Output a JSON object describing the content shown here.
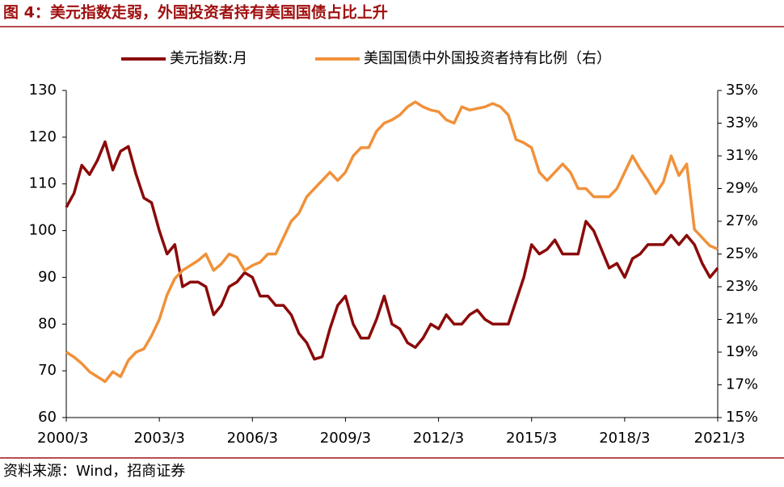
{
  "chart_data": {
    "type": "line",
    "title": "图 4：美元指数走弱，外国投资者持有美国国债占比上升",
    "source": "资料来源：Wind，招商证券",
    "categories": [
      "2000/3",
      null,
      null,
      null,
      null,
      null,
      null,
      null,
      null,
      null,
      null,
      null,
      "2003/3",
      null,
      null,
      null,
      null,
      null,
      null,
      null,
      null,
      null,
      null,
      null,
      "2006/3",
      null,
      null,
      null,
      null,
      null,
      null,
      null,
      null,
      null,
      null,
      null,
      "2009/3",
      null,
      null,
      null,
      null,
      null,
      null,
      null,
      null,
      null,
      null,
      null,
      "2012/3",
      null,
      null,
      null,
      null,
      null,
      null,
      null,
      null,
      null,
      null,
      null,
      "2015/3",
      null,
      null,
      null,
      null,
      null,
      null,
      null,
      null,
      null,
      null,
      null,
      "2018/3",
      null,
      null,
      null,
      null,
      null,
      null,
      null,
      null,
      null,
      null,
      null,
      "2021/3"
    ],
    "series": [
      {
        "name": "美元指数:月",
        "color": "#8b0a0a",
        "axis": "y",
        "values": [
          105,
          108,
          114,
          112,
          115,
          119,
          113,
          117,
          118,
          112,
          107,
          106,
          100,
          95,
          97,
          88,
          89,
          89,
          88,
          82,
          84,
          88,
          89,
          91,
          90,
          86,
          86,
          84,
          84,
          82,
          78,
          76,
          72.5,
          73,
          79,
          84,
          86,
          80,
          77,
          77,
          81,
          86,
          80,
          79,
          76,
          75,
          77,
          80,
          79,
          82,
          80,
          80,
          82,
          83,
          81,
          80,
          80,
          80,
          85,
          90,
          97,
          95,
          96,
          98,
          95,
          95,
          95,
          102,
          100,
          96,
          92,
          93,
          90,
          94,
          95,
          97,
          97,
          97,
          99,
          97,
          99,
          97,
          93,
          90,
          92
        ]
      },
      {
        "name": "美国国债中外国投资者持有比例（右）",
        "color": "#f0913a",
        "axis": "y2",
        "values": [
          19,
          18.7,
          18.3,
          17.8,
          17.5,
          17.2,
          17.8,
          17.5,
          18.5,
          19,
          19.2,
          20,
          21,
          22.5,
          23.5,
          24,
          24.3,
          24.6,
          25,
          24,
          24.4,
          25,
          24.8,
          24,
          24.3,
          24.5,
          25,
          25,
          26,
          27,
          27.5,
          28.5,
          29,
          29.5,
          30,
          29.5,
          30,
          31,
          31.5,
          31.5,
          32.5,
          33,
          33.2,
          33.5,
          34,
          34.3,
          34,
          33.8,
          33.7,
          33.2,
          33,
          34,
          33.8,
          33.9,
          34,
          34.2,
          34,
          33.5,
          32,
          31.8,
          31.5,
          30,
          29.5,
          30,
          30.5,
          30,
          29,
          29,
          28.5,
          28.5,
          28.5,
          29,
          30,
          31,
          30.2,
          29.5,
          28.7,
          29.4,
          31,
          29.8,
          30.5,
          26.5,
          26,
          25.5,
          25.3
        ]
      }
    ],
    "ylim": [
      60,
      130
    ],
    "yticks": [
      60,
      70,
      80,
      90,
      100,
      110,
      120,
      130
    ],
    "y2lim": [
      15,
      35
    ],
    "y2ticks": [
      {
        "value": 15,
        "label": "15%"
      },
      {
        "value": 17,
        "label": "17%"
      },
      {
        "value": 19,
        "label": "19%"
      },
      {
        "value": 21,
        "label": "21%"
      },
      {
        "value": 23,
        "label": "23%"
      },
      {
        "value": 25,
        "label": "25%"
      },
      {
        "value": 27,
        "label": "27%"
      },
      {
        "value": 29,
        "label": "29%"
      },
      {
        "value": 31,
        "label": "31%"
      },
      {
        "value": 33,
        "label": "33%"
      },
      {
        "value": 35,
        "label": "35%"
      }
    ],
    "legend": "top"
  }
}
